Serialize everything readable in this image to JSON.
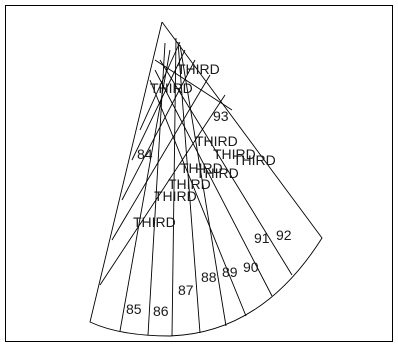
{
  "diagram": {
    "region_labels": [
      "84",
      "85",
      "86",
      "87",
      "88",
      "89",
      "90",
      "91",
      "92",
      "93"
    ],
    "third_label": "THIRD",
    "third_label_count": 9
  },
  "colors": {
    "line": "#000000",
    "text": "#1a1a1a",
    "frame": "#000000",
    "background": "#ffffff"
  }
}
